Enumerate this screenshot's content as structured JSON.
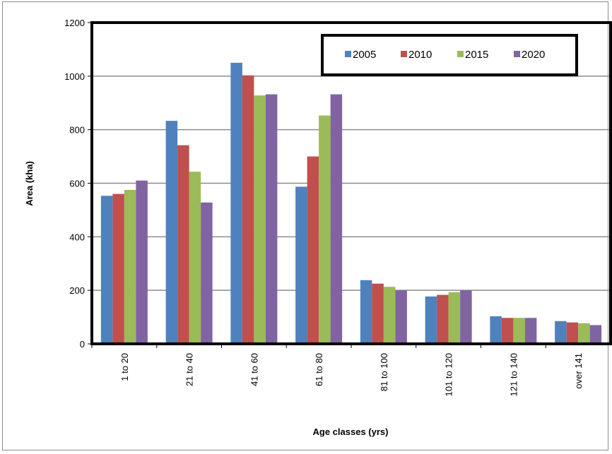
{
  "chart_data": {
    "type": "bar",
    "title": "",
    "xlabel": "Age classes (yrs)",
    "ylabel": "Area (kha)",
    "ylim": [
      0,
      1200
    ],
    "yticks": [
      0,
      200,
      400,
      600,
      800,
      1000,
      1200
    ],
    "grid": true,
    "legend_position": "top-right",
    "categories": [
      "1 to 20",
      "21 to 40",
      "41 to 60",
      "61 to 80",
      "81 to 100",
      "101 to 120",
      "121 to 140",
      "over 141"
    ],
    "series": [
      {
        "name": "2005",
        "color": "#4f81bd",
        "values": [
          553,
          833,
          1050,
          587,
          238,
          177,
          103,
          85
        ]
      },
      {
        "name": "2010",
        "color": "#c0504d",
        "values": [
          560,
          742,
          1003,
          700,
          225,
          183,
          97,
          80
        ]
      },
      {
        "name": "2015",
        "color": "#9bbb59",
        "values": [
          575,
          643,
          928,
          853,
          213,
          193,
          97,
          77
        ]
      },
      {
        "name": "2020",
        "color": "#8064a2",
        "values": [
          610,
          528,
          932,
          932,
          200,
          200,
          97,
          70
        ]
      }
    ]
  }
}
